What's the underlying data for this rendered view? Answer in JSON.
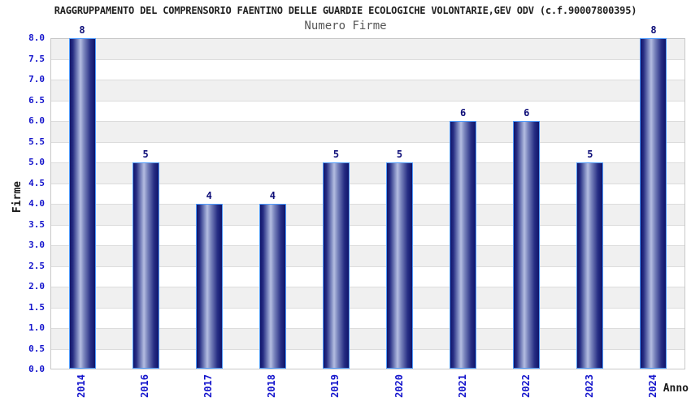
{
  "chart_data": {
    "type": "bar",
    "title": "RAGGRUPPAMENTO DEL COMPRENSORIO FAENTINO DELLE GUARDIE ECOLOGICHE VOLONTARIE,GEV ODV (c.f.90007800395)",
    "subtitle": "Numero Firme",
    "xlabel": "Anno",
    "ylabel": "Firme",
    "categories": [
      "2014",
      "2016",
      "2017",
      "2018",
      "2019",
      "2020",
      "2021",
      "2022",
      "2023",
      "2024"
    ],
    "values": [
      8,
      5,
      4,
      4,
      5,
      5,
      6,
      6,
      5,
      8
    ],
    "ylim": [
      0,
      8
    ],
    "ytick_step": 0.5,
    "yticks": [
      "0.0",
      "0.5",
      "1.0",
      "1.5",
      "2.0",
      "2.5",
      "3.0",
      "3.5",
      "4.0",
      "4.5",
      "5.0",
      "5.5",
      "6.0",
      "6.5",
      "7.0",
      "7.5",
      "8.0"
    ],
    "grid": true,
    "legend": "none",
    "band_pattern": "gray stripes between half-unit and whole-unit gridlines",
    "colors": {
      "tick_label": "#1414cc",
      "data_label": "#0d0d78",
      "bar_border": "#4f9bfc",
      "bar_dark": "#10146a",
      "bar_light": "#b4bde1",
      "band": "#f0f0f0",
      "gridline": "#dcdcdc",
      "plot_border": "#c8c8c8",
      "title": "#1f1f1f",
      "subtitle": "#565656",
      "axis_title": "#1a1a1a"
    }
  }
}
